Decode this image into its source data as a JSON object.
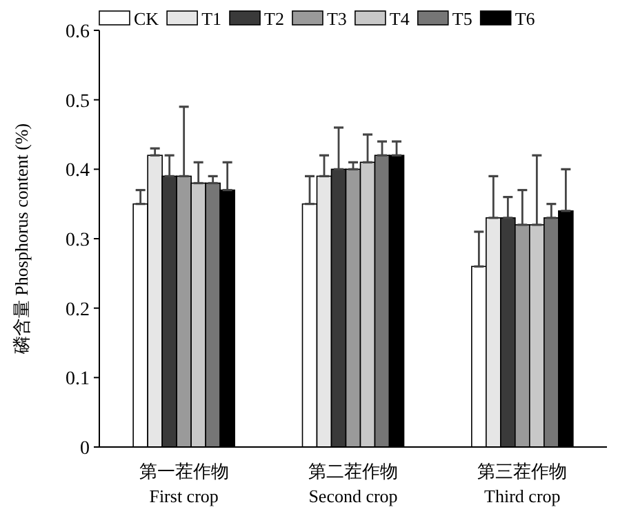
{
  "chart_data": {
    "type": "bar",
    "ylabel": "磷含量 Phosphorus content (%)",
    "categories": [
      "第一茬作物\nFirst crop",
      "第二茬作物\nSecond crop",
      "第三茬作物\nThird crop"
    ],
    "ylim": [
      0,
      0.6
    ],
    "yticks": [
      0,
      0.1,
      0.2,
      0.3,
      0.4,
      0.5,
      0.6
    ],
    "grid": false,
    "legend": "top",
    "series": [
      {
        "name": "CK",
        "color": "#ffffff",
        "values": [
          0.35,
          0.35,
          0.26
        ],
        "errors": [
          [
            0.35,
            0.37
          ],
          [
            0.35,
            0.39
          ],
          [
            0.26,
            0.31
          ]
        ]
      },
      {
        "name": "T1",
        "color": "#e6e6e6",
        "values": [
          0.42,
          0.39,
          0.33
        ],
        "errors": [
          [
            0.42,
            0.43
          ],
          [
            0.39,
            0.42
          ],
          [
            0.33,
            0.39
          ]
        ]
      },
      {
        "name": "T2",
        "color": "#3a3a3a",
        "values": [
          0.39,
          0.4,
          0.33
        ],
        "errors": [
          [
            0.39,
            0.42
          ],
          [
            0.4,
            0.46
          ],
          [
            0.33,
            0.36
          ]
        ]
      },
      {
        "name": "T3",
        "color": "#9a9a9a",
        "values": [
          0.39,
          0.4,
          0.32
        ],
        "errors": [
          [
            0.39,
            0.49
          ],
          [
            0.4,
            0.41
          ],
          [
            0.32,
            0.37
          ]
        ]
      },
      {
        "name": "T4",
        "color": "#c8c8c8",
        "values": [
          0.38,
          0.41,
          0.32
        ],
        "errors": [
          [
            0.38,
            0.41
          ],
          [
            0.41,
            0.45
          ],
          [
            0.32,
            0.42
          ]
        ]
      },
      {
        "name": "T5",
        "color": "#767676",
        "values": [
          0.38,
          0.42,
          0.33
        ],
        "errors": [
          [
            0.38,
            0.39
          ],
          [
            0.42,
            0.44
          ],
          [
            0.33,
            0.35
          ]
        ]
      },
      {
        "name": "T6",
        "color": "#000000",
        "values": [
          0.37,
          0.42,
          0.34
        ],
        "errors": [
          [
            0.37,
            0.41
          ],
          [
            0.42,
            0.44
          ],
          [
            0.34,
            0.4
          ]
        ]
      }
    ]
  }
}
